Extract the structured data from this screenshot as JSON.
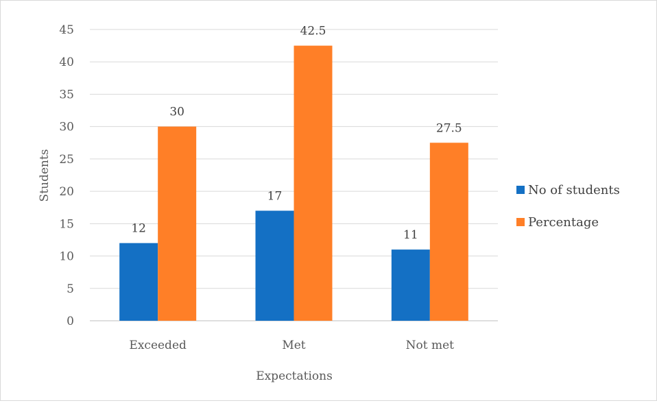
{
  "chart_data": {
    "type": "bar",
    "title": "",
    "xlabel": "Expectations",
    "ylabel": "Students",
    "categories": [
      "Exceeded",
      "Met",
      "Not met"
    ],
    "series": [
      {
        "name": "No of students",
        "values": [
          12,
          17,
          11
        ],
        "color": "#1470c4"
      },
      {
        "name": "Percentage",
        "values": [
          30,
          42.5,
          27.5
        ],
        "color": "#ff7f27"
      }
    ],
    "ylim": [
      0,
      45
    ],
    "yticks": [
      "0",
      "5",
      "10",
      "15",
      "20",
      "25",
      "30",
      "35",
      "40",
      "45"
    ],
    "data_labels": [
      [
        "12",
        "17",
        "11"
      ],
      [
        "30",
        "42.5",
        "27.5"
      ]
    ],
    "grid": true,
    "legend_position": "right"
  }
}
